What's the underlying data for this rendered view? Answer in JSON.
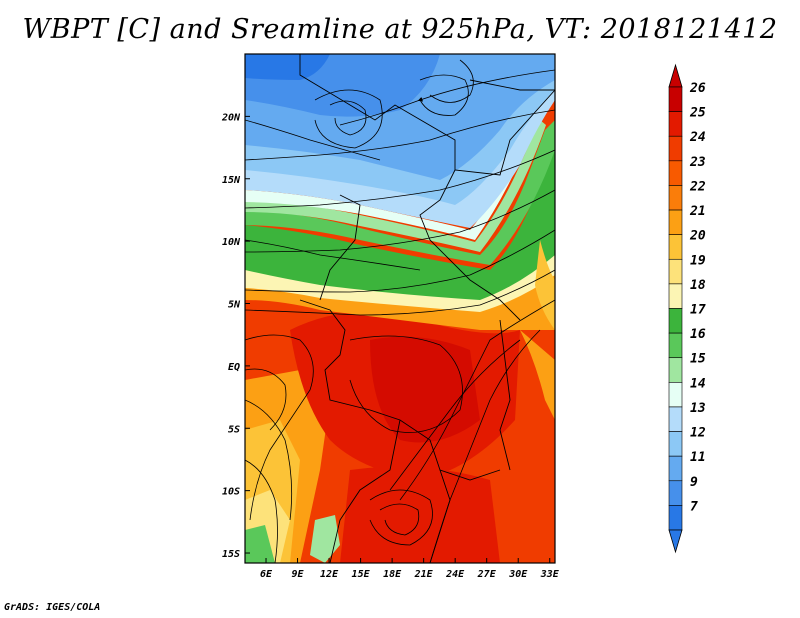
{
  "title": "WBPT [C] and Sreamline at 925hPa, VT: 2018121412",
  "footer": "GrADS: IGES/COLA",
  "map": {
    "lon_range": [
      4,
      33.5
    ],
    "lat_range": [
      -15.8,
      25
    ],
    "x_ticks": [
      "6E",
      "9E",
      "12E",
      "15E",
      "18E",
      "21E",
      "24E",
      "27E",
      "30E",
      "33E"
    ],
    "y_ticks": [
      "20N",
      "15N",
      "10N",
      "5N",
      "EQ",
      "5S",
      "10S",
      "15S"
    ],
    "streamlines": "black",
    "borders": "black"
  },
  "colorbar": {
    "labels": [
      "26",
      "25",
      "24",
      "23",
      "22",
      "21",
      "20",
      "19",
      "18",
      "17",
      "16",
      "15",
      "14",
      "13",
      "12",
      "11",
      "9",
      "7"
    ],
    "colors": [
      "#c80000",
      "#e31a00",
      "#f03c00",
      "#f85a00",
      "#fa7d0a",
      "#fca014",
      "#fcc337",
      "#fde27a",
      "#fcf5b4",
      "#3cb43c",
      "#5ac85a",
      "#a0e6a0",
      "#e6fff5",
      "#b4dcfa",
      "#8cc8f5",
      "#64aaf0",
      "#4690eb",
      "#2878e6"
    ],
    "extend": "both"
  }
}
